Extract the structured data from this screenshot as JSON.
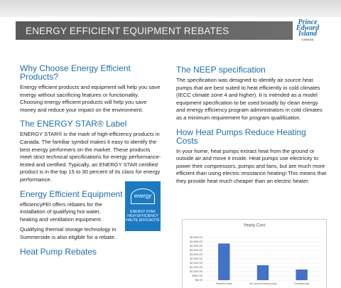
{
  "header": {
    "title": "ENERGY EFFICIENT EQUIPMENT REBATES",
    "logo": [
      "Prince",
      "Edward",
      "Island",
      "CANADA"
    ]
  },
  "left": [
    {
      "heading": "Why Choose Energy Efficient Products?",
      "paragraphs": [
        "Energy efficient products and equipment will help you save energy without sacrificing features or functionality. Choosing energy efficient products will help you save money and reduce your impact on the environment."
      ]
    },
    {
      "heading": "The ENERGY STAR® Label",
      "paragraphs": [
        "ENERGY STAR® is the mark of high-efficiency products in Canada. The familiar symbol makes it easy to identify the best energy performers on the market. These products meet strict technical specifications for energy performance-tested and certified. Typically, an ENERGY STAR certified product is in the top 15 to 30 percent of its class for energy performance."
      ]
    },
    {
      "heading": "Energy Efficient Equipment Rebates",
      "paragraphs": [
        "efficiencyPEI offers rebates for the installation of qualifying hot water, heating and ventilation equipment.",
        "Qualifying thermal storage technology in Summerside is also eligible for a rebate."
      ]
    },
    {
      "heading": "Heat Pump Rebates",
      "paragraphs": []
    }
  ],
  "badge": [
    "energy",
    "ENERGY STAR",
    "HIGH EFFICIENCY",
    "HAUTE EFFICACITÉ"
  ],
  "right": [
    {
      "heading": "The NEEP specification",
      "paragraphs": [
        "The specification was designed to identify air source heat pumps that are best suited to heat efficiently in cold climates (IECC climate zone 4 and higher). It is intended as a model equipment specification to be used broadly by clean energy and energy efficiency program administrators in cold climates as a minimum requirement for program qualification."
      ]
    },
    {
      "heading": "How Heat Pumps Reduce Heating Costs",
      "paragraphs": [
        "In your home, heat pumps extract heat from the ground or outside air and move it inside. Heat pumps use electricity to power their compressors, pumps and fans, but are much more efficient than using electric resistance heating! This means that they provide heat much cheaper than an electric heater."
      ]
    }
  ],
  "chart_data": {
    "type": "bar",
    "title": "Yearly Cost",
    "categories": [
      "Electric heat",
      "Air source heat pump",
      "Geothermal"
    ],
    "values": [
      4300,
      1750,
      1250
    ],
    "color": "#4472c4",
    "ylim": [
      0,
      5000
    ],
    "yticks": [
      {
        "value": 0,
        "label": "$0.00"
      },
      {
        "value": 500,
        "label": "$500.00"
      },
      {
        "value": 1000,
        "label": "$1,000.00"
      },
      {
        "value": 1500,
        "label": "$1,500.00"
      },
      {
        "value": 2000,
        "label": "$2,000.00"
      },
      {
        "value": 2500,
        "label": "$2,500.00"
      },
      {
        "value": 3000,
        "label": "$3,000.00"
      },
      {
        "value": 3500,
        "label": "$3,500.00"
      },
      {
        "value": 4000,
        "label": "$4,000.00"
      },
      {
        "value": 4500,
        "label": "$4,500.00"
      },
      {
        "value": 5000,
        "label": "$5,000.00"
      }
    ],
    "grid": true
  }
}
